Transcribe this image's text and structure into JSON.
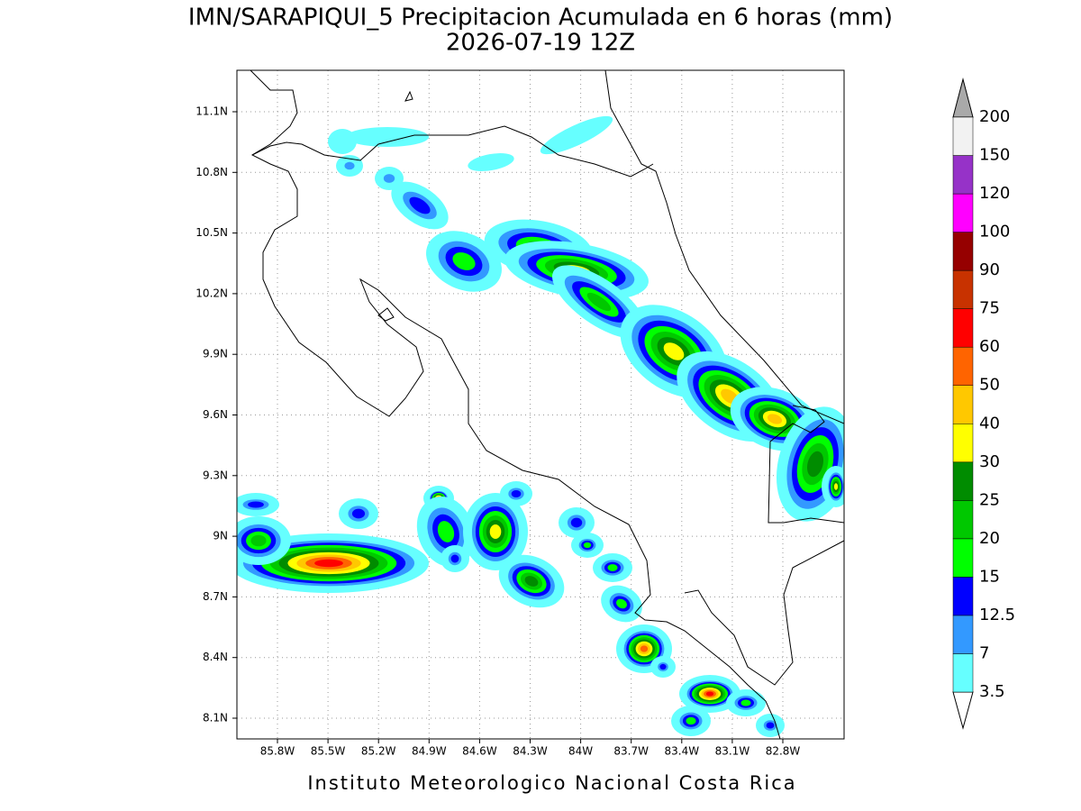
{
  "header": {
    "title": "IMN/SARAPIQUI_5 Precipitacion Acumulada en 6 horas (mm)",
    "subtitle": "2026-07-19 12Z"
  },
  "map": {
    "lon_labels": [
      "85.8W",
      "85.5W",
      "85.2W",
      "84.9W",
      "84.6W",
      "84.3W",
      "84W",
      "83.7W",
      "83.4W",
      "83.1W",
      "82.8W"
    ],
    "lat_labels": [
      "11.1N",
      "10.8N",
      "10.5N",
      "10.2N",
      "9.9N",
      "9.6N",
      "9.3N",
      "9N",
      "8.7N",
      "8.4N",
      "8.1N"
    ]
  },
  "legend": {
    "levels": [
      3.5,
      7,
      12.5,
      15,
      20,
      25,
      30,
      40,
      50,
      60,
      75,
      90,
      100,
      120,
      150,
      200
    ],
    "colors": [
      "#66ffff",
      "#3399ff",
      "#0000ff",
      "#00ff00",
      "#00c800",
      "#008c00",
      "#ffff00",
      "#ffc800",
      "#ff6400",
      "#ff0000",
      "#c83200",
      "#960000",
      "#ff00ff",
      "#9632c8",
      "#f2f2f2"
    ],
    "over_color": "#a9a9a9",
    "under_color": "#ffffff"
  },
  "footer": "Instituto Meteorologico Nacional Costa Rica"
}
